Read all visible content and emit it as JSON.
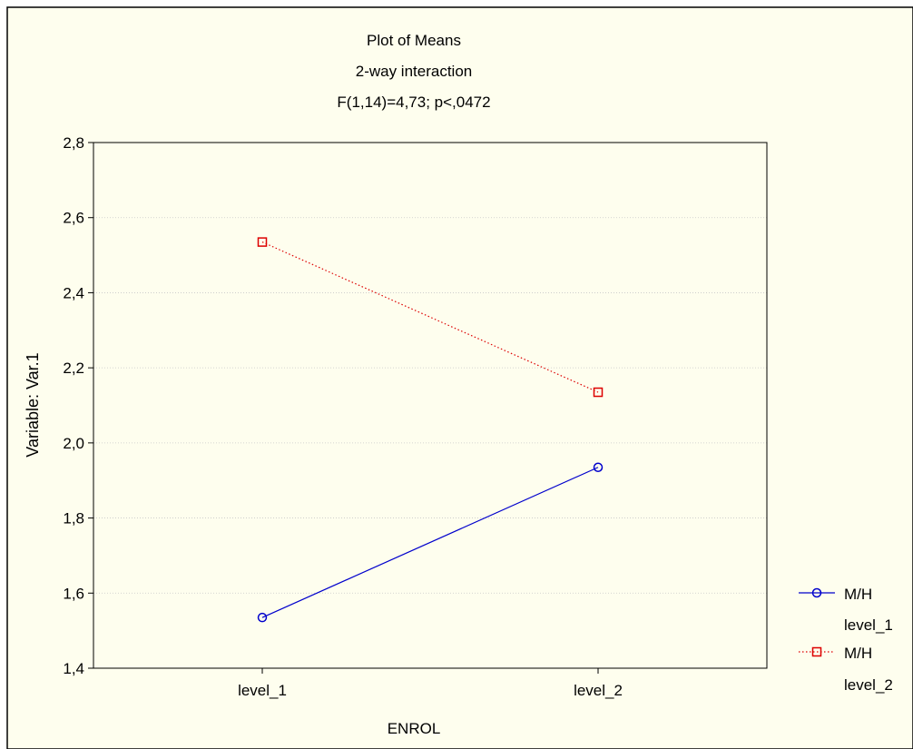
{
  "chart_data": {
    "type": "line",
    "title": "Plot of Means",
    "subtitle": "2-way interaction",
    "subtitle2": "F(1,14)=4,73; p<,0472",
    "xlabel": "ENROL",
    "ylabel": "Variable: Var.1",
    "categories": [
      "level_1",
      "level_2"
    ],
    "ylim": [
      1.4,
      2.8
    ],
    "yticks": [
      "1,4",
      "1,6",
      "1,8",
      "2,0",
      "2,2",
      "2,4",
      "2,6",
      "2,8"
    ],
    "grid": true,
    "legend_position": "right",
    "series": [
      {
        "name": "M/H",
        "sublabel": "level_1",
        "values": [
          1.535,
          1.935
        ],
        "color": "#0000cc",
        "marker": "circle",
        "line": "solid"
      },
      {
        "name": "M/H",
        "sublabel": "level_2",
        "values": [
          2.535,
          2.135
        ],
        "color": "#dd0000",
        "marker": "square",
        "line": "dotted"
      }
    ],
    "background": "#fefeee"
  }
}
